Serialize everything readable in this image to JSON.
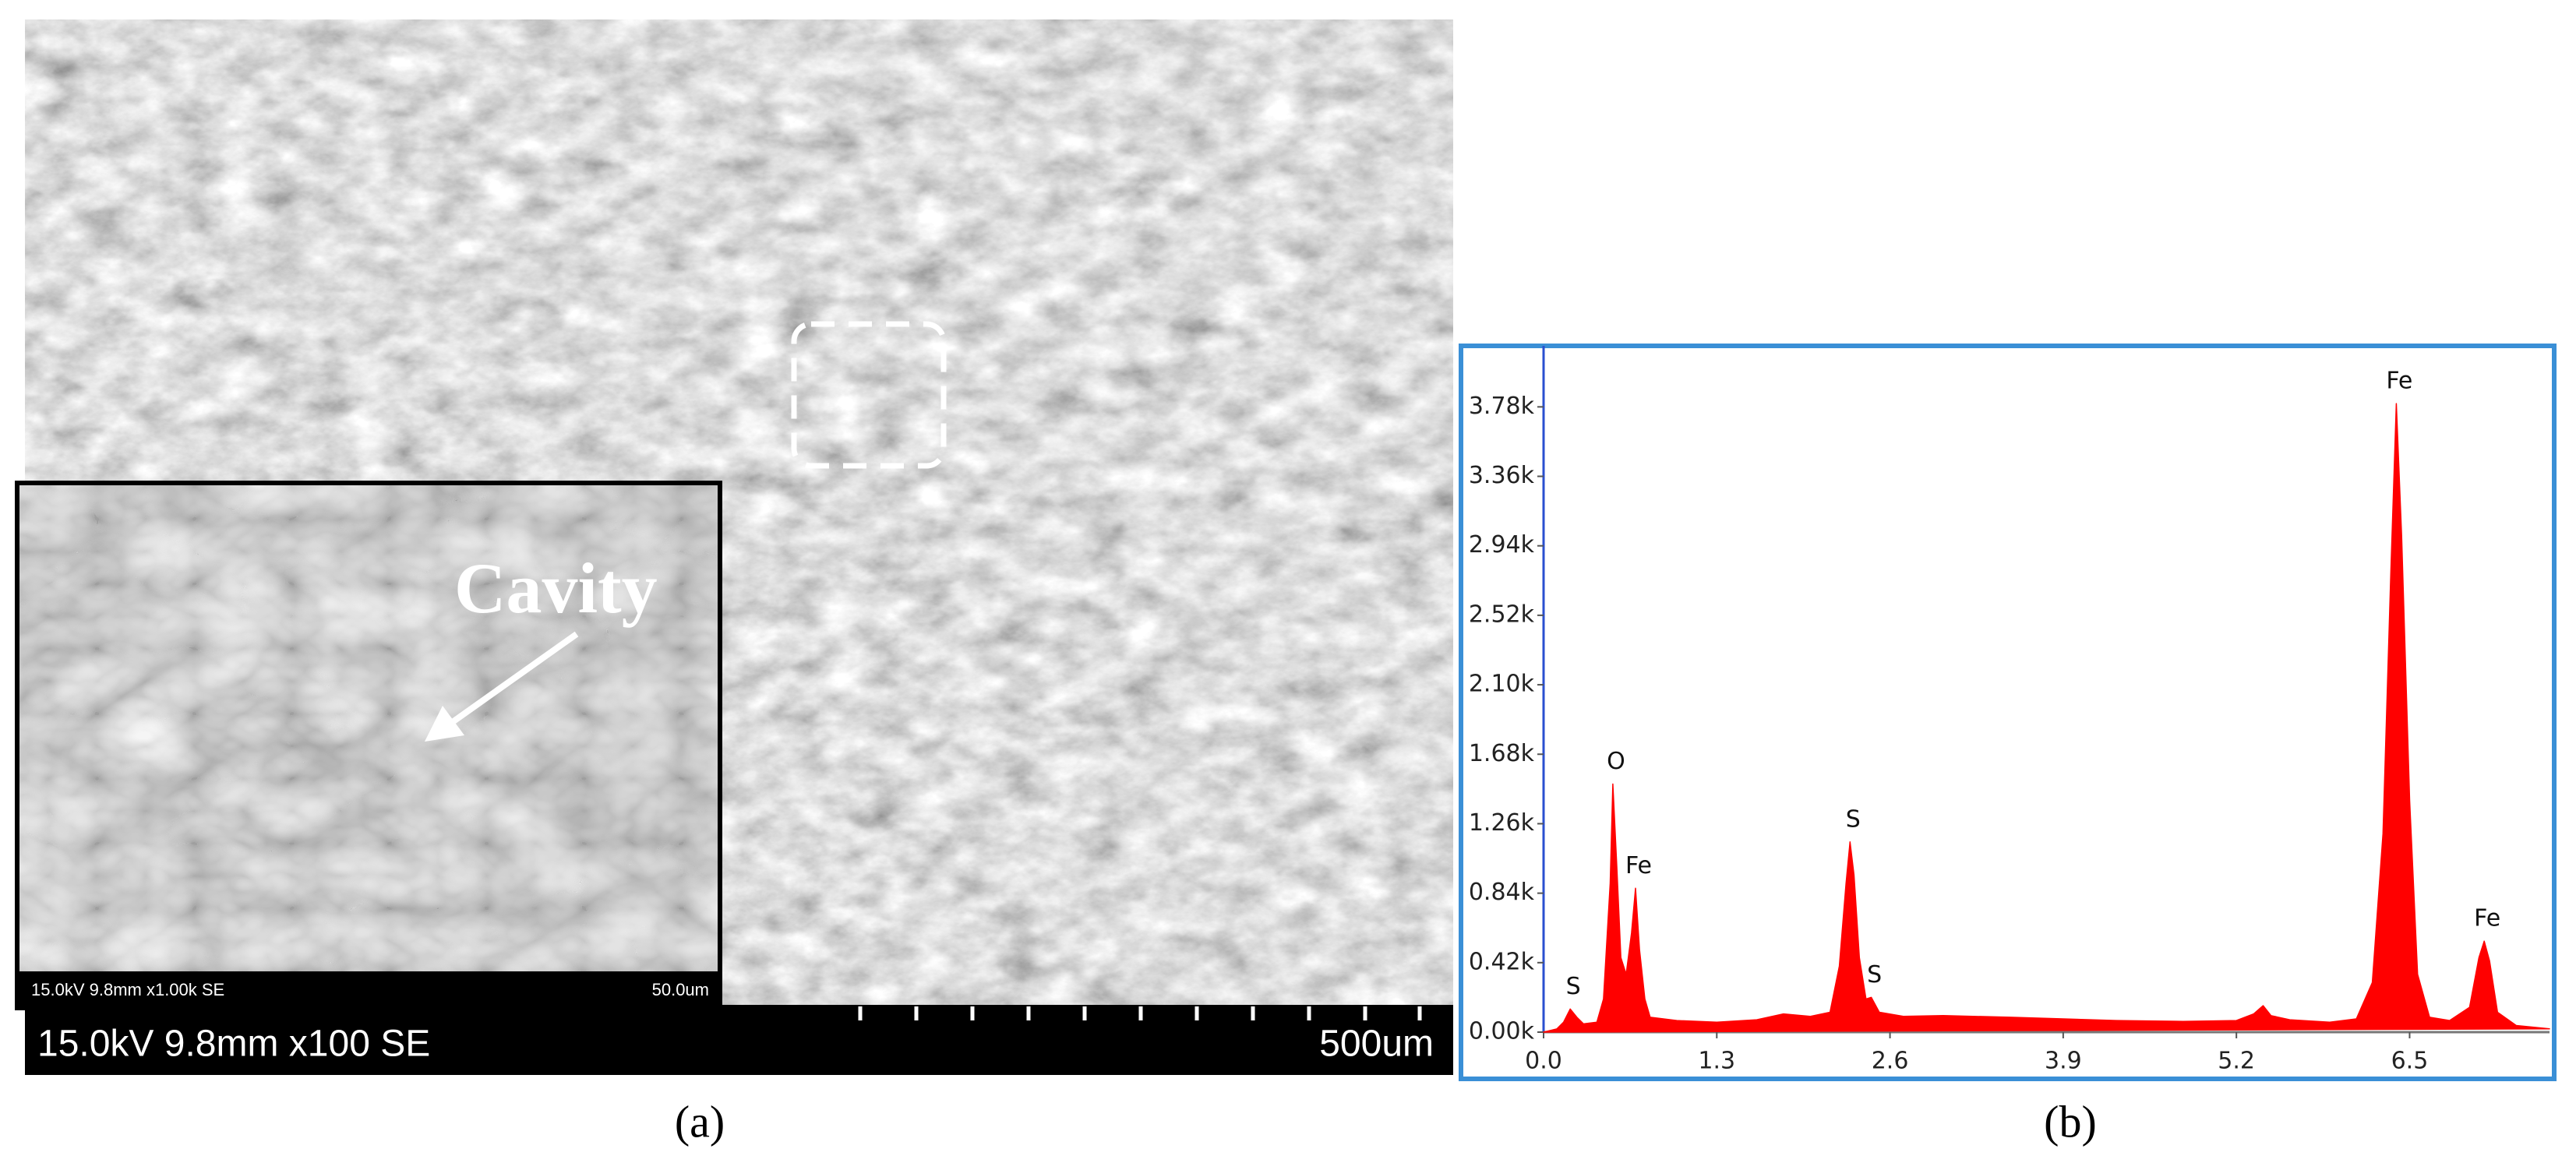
{
  "sem_panel": {
    "inset_info": "15.0kV 9.8mm x1.00k SE",
    "inset_scale": "50.0um",
    "annotation": "Cavity",
    "main_info": "15.0kV 9.8mm x100 SE",
    "main_scale": "500um",
    "label": "(a)"
  },
  "spectrum_label": "(b)",
  "chart_data": {
    "type": "spectrum",
    "color": "#ff0000",
    "x": [
      0.0,
      0.1,
      0.15,
      0.2,
      0.25,
      0.3,
      0.4,
      0.45,
      0.5,
      0.52,
      0.55,
      0.58,
      0.62,
      0.66,
      0.69,
      0.72,
      0.76,
      0.8,
      1.0,
      1.3,
      1.6,
      1.8,
      2.0,
      2.15,
      2.22,
      2.27,
      2.3,
      2.33,
      2.37,
      2.42,
      2.46,
      2.52,
      2.7,
      3.0,
      3.5,
      3.9,
      4.3,
      4.8,
      5.2,
      5.33,
      5.4,
      5.46,
      5.6,
      5.9,
      6.1,
      6.22,
      6.3,
      6.36,
      6.4,
      6.44,
      6.5,
      6.56,
      6.65,
      6.8,
      6.95,
      7.02,
      7.06,
      7.1,
      7.16,
      7.3,
      7.55
    ],
    "values": [
      0,
      20,
      60,
      140,
      90,
      50,
      60,
      200,
      900,
      1500,
      1000,
      450,
      350,
      600,
      870,
      500,
      200,
      90,
      70,
      60,
      75,
      110,
      95,
      120,
      400,
      900,
      1150,
      950,
      450,
      200,
      210,
      120,
      95,
      100,
      90,
      80,
      70,
      65,
      70,
      110,
      160,
      100,
      75,
      60,
      80,
      300,
      1200,
      2800,
      3800,
      3000,
      1400,
      350,
      90,
      70,
      150,
      450,
      550,
      430,
      120,
      40,
      20
    ],
    "annotations": [
      {
        "text": "S",
        "x": 0.2,
        "y": 140
      },
      {
        "text": "O",
        "x": 0.52,
        "y": 1500
      },
      {
        "text": "Fe",
        "x": 0.69,
        "y": 870
      },
      {
        "text": "S",
        "x": 2.3,
        "y": 1150
      },
      {
        "text": "S",
        "x": 2.46,
        "y": 210
      },
      {
        "text": "Fe",
        "x": 6.4,
        "y": 3800
      },
      {
        "text": "Fe",
        "x": 7.06,
        "y": 550
      }
    ],
    "xlim": [
      0,
      7.55
    ],
    "ylim": [
      0,
      4130
    ],
    "xticks": [
      {
        "value": 0,
        "label": "0.0"
      },
      1.3,
      2.6,
      3.9,
      5.2,
      6.5
    ],
    "yticks": [
      {
        "value": 0,
        "label": "0.00k"
      },
      {
        "value": 420,
        "label": "0.42k"
      },
      {
        "value": 840,
        "label": "0.84k"
      },
      {
        "value": 1260,
        "label": "1.26k"
      },
      {
        "value": 1680,
        "label": "1.68k"
      },
      {
        "value": 2100,
        "label": "2.10k"
      },
      {
        "value": 2520,
        "label": "2.52k"
      },
      {
        "value": 2940,
        "label": "2.94k"
      },
      {
        "value": 3360,
        "label": "3.36k"
      },
      {
        "value": 3780,
        "label": "3.78k"
      }
    ]
  }
}
